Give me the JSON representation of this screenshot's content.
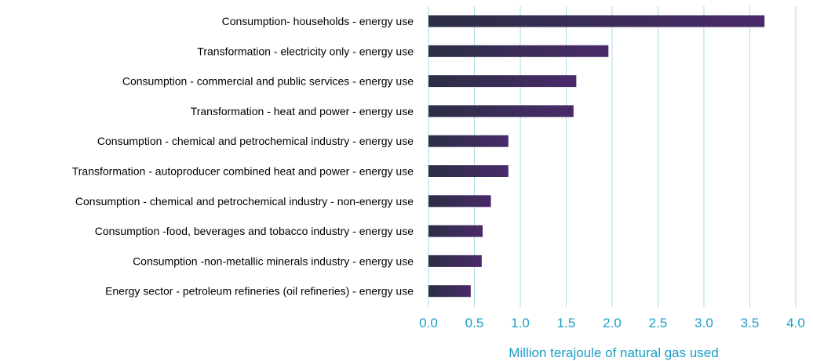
{
  "chart_data": {
    "type": "bar",
    "orientation": "horizontal",
    "title": "",
    "xlabel": "Million terajoule of natural gas used",
    "ylabel": "",
    "xlim": [
      0,
      4
    ],
    "x_ticks": [
      "0.0",
      "0.5",
      "1.0",
      "1.5",
      "2.0",
      "2.5",
      "3.0",
      "3.5",
      "4.0"
    ],
    "grid": "vertical",
    "legend": "none",
    "categories": [
      "Consumption- households - energy use",
      "Transformation - electricity only - energy use",
      "Consumption - commercial and public services - energy use",
      "Transformation - heat and power - energy use",
      "Consumption - chemical and petrochemical industry - energy use",
      "Transformation - autoproducer combined heat and power - energy use",
      "Consumption - chemical and petrochemical industry - non-energy use",
      "Consumption -food, beverages and tobacco industry - energy use",
      "Consumption -non-metallic minerals industry - energy use",
      "Energy sector - petroleum refineries (oil refineries) - energy use"
    ],
    "values": [
      3.66,
      1.96,
      1.61,
      1.58,
      0.87,
      0.87,
      0.68,
      0.59,
      0.58,
      0.46
    ]
  },
  "colors": {
    "bar_start": "#2b2f45",
    "bar_end": "#4a2a6a",
    "grid": "#a9dbe6",
    "tick_text": "#1a9fc6",
    "axis_title": "#1a9fc6",
    "label_text": "#000000"
  }
}
